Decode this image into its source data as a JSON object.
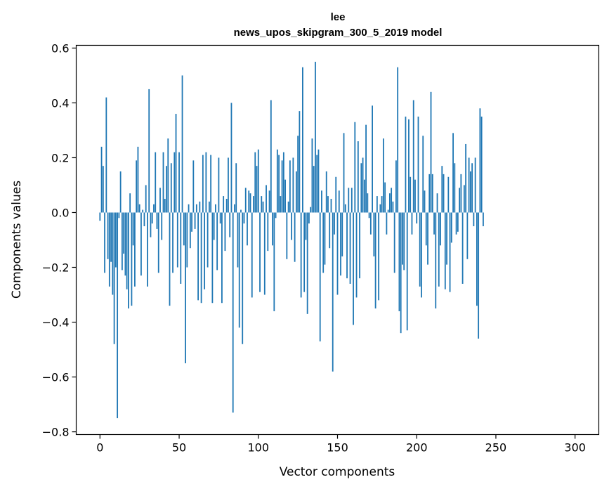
{
  "chart_data": {
    "type": "bar",
    "title_line1": "lee",
    "title_line2": "news_upos_skipgram_300_5_2019 model",
    "xlabel": "Vector components",
    "ylabel": "Components values",
    "xlim": [
      -15,
      315
    ],
    "ylim": [
      -0.81,
      0.61
    ],
    "xticks": [
      0,
      50,
      100,
      150,
      200,
      250,
      300
    ],
    "xtick_labels": [
      "0",
      "50",
      "100",
      "150",
      "200",
      "250",
      "300"
    ],
    "yticks": [
      -0.8,
      -0.6,
      -0.4,
      -0.2,
      0.0,
      0.2,
      0.4,
      0.6
    ],
    "ytick_labels": [
      "−0.8",
      "−0.6",
      "−0.4",
      "−0.2",
      "0.0",
      "0.2",
      "0.4",
      "0.6"
    ],
    "bar_color": "#1f77b4",
    "grid": false,
    "values": [
      -0.03,
      0.24,
      0.17,
      -0.22,
      0.42,
      -0.17,
      -0.27,
      -0.18,
      -0.3,
      -0.48,
      -0.2,
      -0.75,
      -0.02,
      0.15,
      -0.21,
      -0.15,
      -0.23,
      -0.28,
      -0.35,
      0.07,
      -0.34,
      -0.12,
      -0.27,
      0.19,
      0.24,
      0.03,
      -0.23,
      0.01,
      -0.05,
      0.1,
      -0.27,
      0.45,
      -0.09,
      -0.04,
      0.03,
      0.22,
      -0.06,
      -0.22,
      0.09,
      -0.1,
      0.22,
      0.05,
      0.17,
      0.27,
      -0.34,
      0.18,
      -0.22,
      0.22,
      0.36,
      -0.2,
      0.22,
      -0.26,
      0.5,
      -0.12,
      -0.55,
      -0.2,
      0.03,
      -0.13,
      -0.07,
      0.19,
      -0.06,
      0.03,
      -0.32,
      0.04,
      -0.33,
      0.21,
      -0.28,
      0.22,
      -0.2,
      0.04,
      0.21,
      -0.33,
      -0.1,
      0.03,
      -0.21,
      0.2,
      -0.04,
      -0.33,
      0.06,
      -0.14,
      0.05,
      0.2,
      -0.09,
      0.4,
      -0.73,
      0.03,
      0.18,
      -0.2,
      -0.42,
      0.01,
      -0.48,
      -0.04,
      0.09,
      -0.12,
      0.08,
      0.07,
      -0.31,
      0.06,
      0.22,
      0.17,
      0.23,
      -0.29,
      0.06,
      0.04,
      -0.3,
      0.1,
      -0.14,
      0.08,
      0.41,
      -0.12,
      -0.36,
      -0.02,
      0.23,
      0.21,
      0.06,
      0.19,
      0.22,
      0.12,
      -0.17,
      0.04,
      0.19,
      -0.1,
      0.2,
      -0.18,
      0.15,
      0.28,
      0.37,
      -0.31,
      0.53,
      -0.29,
      -0.1,
      -0.37,
      -0.04,
      0.02,
      0.27,
      0.17,
      0.55,
      0.21,
      0.23,
      -0.47,
      0.08,
      -0.22,
      -0.19,
      0.15,
      0.06,
      -0.13,
      0.05,
      -0.58,
      -0.08,
      0.13,
      -0.3,
      0.08,
      -0.23,
      -0.16,
      0.29,
      0.03,
      -0.24,
      0.09,
      -0.26,
      0.09,
      -0.41,
      0.33,
      -0.31,
      0.26,
      -0.24,
      0.18,
      0.2,
      0.12,
      0.32,
      0.07,
      -0.02,
      -0.08,
      0.39,
      -0.16,
      -0.35,
      0.06,
      -0.32,
      0.03,
      0.06,
      0.27,
      0.11,
      -0.08,
      0.01,
      0.07,
      0.09,
      0.04,
      -0.22,
      0.19,
      0.53,
      -0.36,
      -0.44,
      -0.19,
      -0.21,
      0.35,
      -0.43,
      0.34,
      0.13,
      -0.08,
      0.41,
      0.12,
      -0.04,
      0.35,
      -0.27,
      -0.31,
      0.28,
      0.08,
      -0.12,
      -0.19,
      0.14,
      0.44,
      0.14,
      -0.08,
      -0.35,
      0.07,
      -0.27,
      -0.12,
      0.17,
      0.14,
      -0.28,
      -0.19,
      0.13,
      -0.29,
      -0.11,
      0.29,
      0.18,
      -0.08,
      -0.07,
      0.09,
      0.14,
      -0.26,
      0.1,
      0.25,
      -0.17,
      0.2,
      0.15,
      0.18,
      -0.05,
      0.2,
      -0.34,
      -0.46,
      0.38,
      0.35,
      -0.05
    ]
  }
}
